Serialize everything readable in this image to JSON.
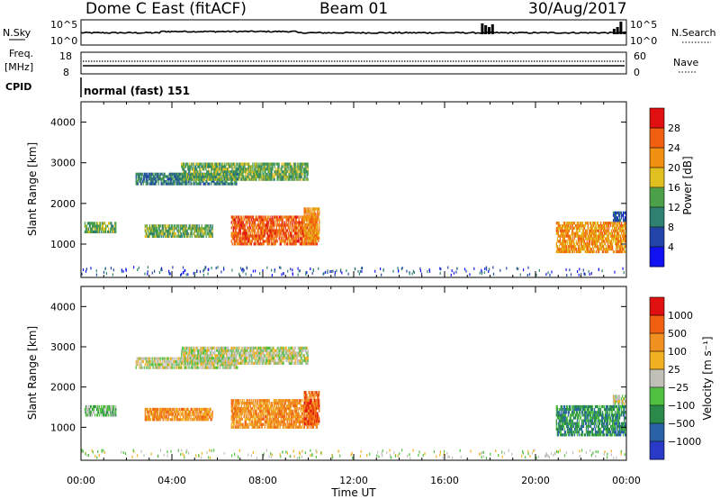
{
  "header": {
    "station": "Dome C East (fitACF)",
    "beam": "Beam 01",
    "date": "30/Aug/2017"
  },
  "status_panels": {
    "nsky_label": "N.Sky",
    "nsearch_label": "N.Search",
    "noise_ticks": [
      "10^5",
      "10^0"
    ],
    "freq_label_line1": "Freq.",
    "freq_label_line2": "[MHz]",
    "freq_ticks": [
      "18",
      "8"
    ],
    "nave_label": "Nave",
    "nave_ticks": [
      "60",
      "0"
    ],
    "cpid_label": "CPID",
    "cpid_text": "normal (fast) 151"
  },
  "chart_data": [
    {
      "type": "heatmap",
      "name": "power",
      "xlabel": "Time UT",
      "ylabel": "Slant Range [km]",
      "x_ticks": [
        "00:00",
        "04:00",
        "08:00",
        "12:00",
        "16:00",
        "20:00",
        "00:00"
      ],
      "y_ticks": [
        1000,
        2000,
        3000,
        4000
      ],
      "xlim_hours": [
        0,
        24
      ],
      "ylim_km": [
        180,
        4500
      ],
      "colorbar": {
        "label": "Power [dB]",
        "ticks": [
          4,
          8,
          12,
          16,
          20,
          24,
          28
        ],
        "colors": [
          "#1010f0",
          "#2244a8",
          "#2f8070",
          "#4da04a",
          "#e0c020",
          "#f09010",
          "#f06010",
          "#e01010"
        ]
      },
      "regions": [
        {
          "t0": 0.15,
          "t1": 1.55,
          "r0": 1270,
          "r1": 1550,
          "level": 3
        },
        {
          "t0": 2.4,
          "t1": 6.9,
          "r0": 2450,
          "r1": 2750,
          "level": 2
        },
        {
          "t0": 4.4,
          "t1": 10.0,
          "r0": 2560,
          "r1": 3000,
          "level": 3
        },
        {
          "t0": 2.8,
          "t1": 5.8,
          "r0": 1160,
          "r1": 1480,
          "level": 3
        },
        {
          "t0": 6.6,
          "t1": 10.4,
          "r0": 970,
          "r1": 1700,
          "level": 6
        },
        {
          "t0": 9.8,
          "t1": 10.5,
          "r0": 1050,
          "r1": 1900,
          "level": 5
        },
        {
          "t0": 20.9,
          "t1": 24.0,
          "r0": 780,
          "r1": 1550,
          "level": 5
        },
        {
          "t0": 23.4,
          "t1": 24.0,
          "r0": 1550,
          "r1": 1800,
          "level": 1
        }
      ]
    },
    {
      "type": "heatmap",
      "name": "velocity",
      "xlabel": "Time UT",
      "ylabel": "Slant Range [km]",
      "x_ticks": [
        "00:00",
        "04:00",
        "08:00",
        "12:00",
        "16:00",
        "20:00",
        "00:00"
      ],
      "y_ticks": [
        1000,
        2000,
        3000,
        4000
      ],
      "xlim_hours": [
        0,
        24
      ],
      "ylim_km": [
        180,
        4500
      ],
      "colorbar": {
        "label": "Velocity [m s⁻¹]",
        "ticks": [
          "1000",
          "500",
          "100",
          "25",
          "−25",
          "−100",
          "−500",
          "−1000"
        ],
        "colors": [
          "#2a3ac8",
          "#2a62a8",
          "#2a8a4a",
          "#50c040",
          "#c0c0b8",
          "#f0b020",
          "#f09020",
          "#f06010",
          "#e01010"
        ]
      },
      "regions": [
        {
          "t0": 0.15,
          "t1": 1.55,
          "r0": 1270,
          "r1": 1550,
          "level": 3
        },
        {
          "t0": 2.4,
          "t1": 6.9,
          "r0": 2450,
          "r1": 2750,
          "level": 4
        },
        {
          "t0": 4.4,
          "t1": 10.0,
          "r0": 2560,
          "r1": 3000,
          "level": 4
        },
        {
          "t0": 2.8,
          "t1": 5.8,
          "r0": 1160,
          "r1": 1480,
          "level": 6
        },
        {
          "t0": 6.6,
          "t1": 10.4,
          "r0": 970,
          "r1": 1700,
          "level": 6
        },
        {
          "t0": 9.8,
          "t1": 10.5,
          "r0": 1050,
          "r1": 1900,
          "level": 7
        },
        {
          "t0": 20.9,
          "t1": 24.0,
          "r0": 780,
          "r1": 1550,
          "level": 2
        },
        {
          "t0": 23.4,
          "t1": 24.0,
          "r0": 1550,
          "r1": 1800,
          "level": 4
        }
      ]
    }
  ]
}
